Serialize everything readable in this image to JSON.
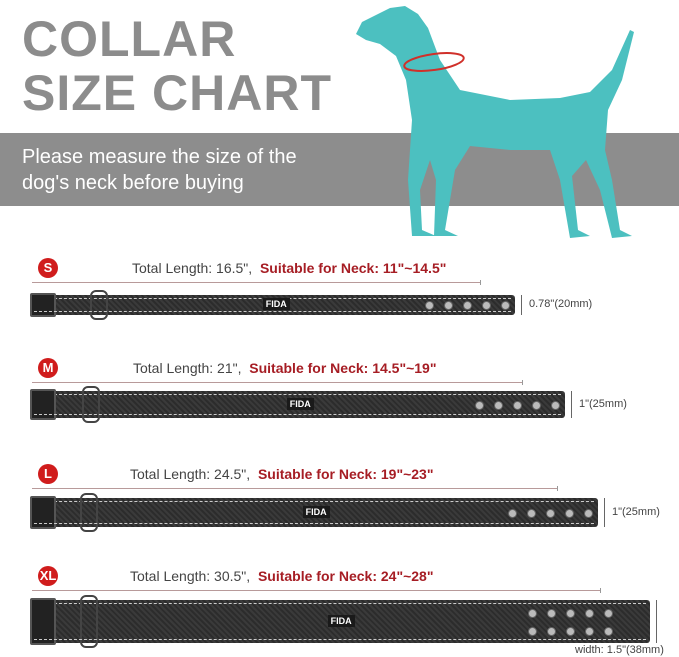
{
  "header": {
    "title_line1": "COLLAR",
    "title_line2": "SIZE CHART",
    "subtitle_line1": "Please measure the size of the",
    "subtitle_line2": "dog's neck before buying"
  },
  "colors": {
    "title": "#8c8c8c",
    "band": "#8d8d8d",
    "dog": "#4cc0c0",
    "accent": "#a61d24",
    "badge": "#d01c1c"
  },
  "sizes": [
    {
      "badge": "S",
      "total": "Total Length: 16.5\",",
      "neck": "Suitable for Neck: 11\"~14.5\"",
      "width": "0.78\"(20mm)",
      "holes": 5
    },
    {
      "badge": "M",
      "total": "Total Length: 21\",",
      "neck": "Suitable for Neck: 14.5\"~19\"",
      "width": "1\"(25mm)",
      "holes": 5
    },
    {
      "badge": "L",
      "total": "Total Length: 24.5\",",
      "neck": "Suitable for Neck: 19\"~23\"",
      "width": "1\"(25mm)",
      "holes": 5
    },
    {
      "badge": "XL",
      "total": "Total Length: 30.5\",",
      "neck": "Suitable for Neck: 24\"~28\"",
      "width": "width: 1.5\"(38mm)",
      "holes": 10
    }
  ],
  "brand": "FIDA"
}
